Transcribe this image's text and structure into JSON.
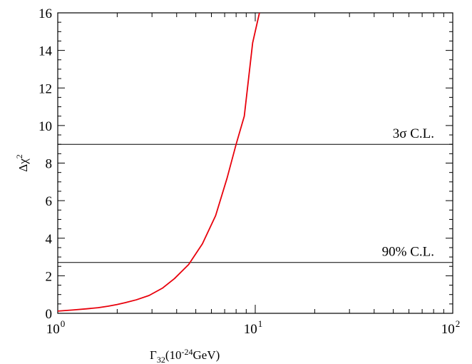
{
  "chart_data": {
    "type": "line",
    "xscale": "log",
    "xlim": [
      1,
      100
    ],
    "ylim": [
      0,
      16
    ],
    "xlabel": {
      "main": "Γ",
      "sub": "32",
      "rest": "(10",
      "sup": "-24",
      "unit": "GeV)"
    },
    "ylabel": {
      "main": "Δχ",
      "sup": "2"
    },
    "x_ticks": [
      {
        "value": 1,
        "base": "10",
        "exp": "0"
      },
      {
        "value": 10,
        "base": "10",
        "exp": "1"
      },
      {
        "value": 100,
        "base": "10",
        "exp": "2"
      }
    ],
    "y_ticks": [
      0,
      2,
      4,
      6,
      8,
      10,
      12,
      14,
      16
    ],
    "grid": false,
    "series": [
      {
        "color": "#e8000b",
        "points": [
          [
            1.0,
            0.12
          ],
          [
            1.2,
            0.18
          ],
          [
            1.4,
            0.24
          ],
          [
            1.6,
            0.3
          ],
          [
            1.8,
            0.38
          ],
          [
            2.0,
            0.47
          ],
          [
            2.2,
            0.57
          ],
          [
            2.5,
            0.72
          ],
          [
            2.9,
            0.95
          ],
          [
            3.4,
            1.35
          ],
          [
            3.9,
            1.85
          ],
          [
            4.6,
            2.6
          ],
          [
            5.4,
            3.7
          ],
          [
            6.3,
            5.2
          ],
          [
            7.2,
            7.2
          ],
          [
            8.0,
            9.0
          ],
          [
            8.8,
            10.5
          ],
          [
            9.7,
            14.4
          ],
          [
            10.5,
            16.0
          ]
        ]
      }
    ],
    "reference_lines": [
      {
        "y": 9.0,
        "label": "3σ C.L.",
        "color": "#000000"
      },
      {
        "y": 2.71,
        "label": "90% C.L.",
        "color": "#000000"
      }
    ]
  }
}
